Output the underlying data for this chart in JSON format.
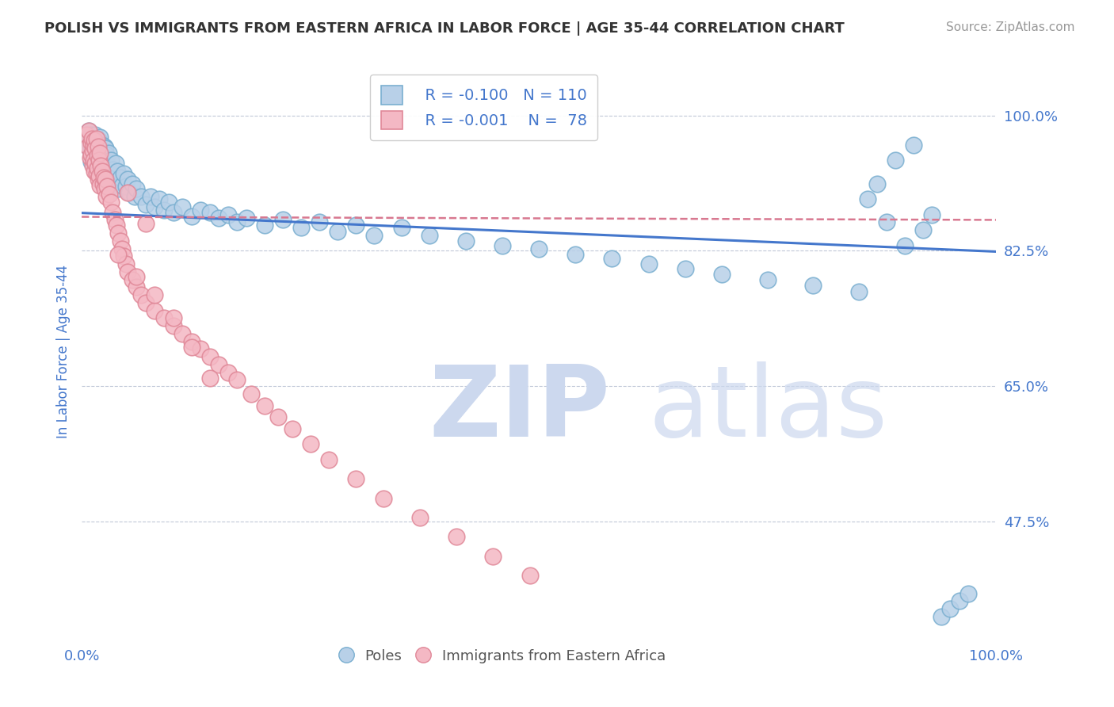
{
  "title": "POLISH VS IMMIGRANTS FROM EASTERN AFRICA IN LABOR FORCE | AGE 35-44 CORRELATION CHART",
  "source": "Source: ZipAtlas.com",
  "ylabel": "In Labor Force | Age 35-44",
  "xlim": [
    0.0,
    1.0
  ],
  "ylim": [
    0.32,
    1.07
  ],
  "yticks": [
    0.475,
    0.65,
    0.825,
    1.0
  ],
  "ytick_labels": [
    "47.5%",
    "65.0%",
    "82.5%",
    "100.0%"
  ],
  "blue_color": "#b8d0e8",
  "blue_edge": "#7aafd0",
  "pink_color": "#f4b8c4",
  "pink_edge": "#e08898",
  "trend_blue": "#4477cc",
  "trend_pink": "#d87890",
  "legend_r_blue": "-0.100",
  "legend_n_blue": "110",
  "legend_r_pink": "-0.001",
  "legend_n_pink": "78",
  "watermark": "ZIPatlas",
  "watermark_color": "#ccd8ee",
  "blue_trend_y_start": 0.874,
  "blue_trend_y_end": 0.824,
  "pink_trend_y_start": 0.869,
  "pink_trend_y_end": 0.865,
  "blue_scatter_x": [
    0.005,
    0.007,
    0.008,
    0.01,
    0.01,
    0.01,
    0.01,
    0.012,
    0.012,
    0.013,
    0.013,
    0.014,
    0.015,
    0.015,
    0.016,
    0.016,
    0.017,
    0.017,
    0.018,
    0.018,
    0.019,
    0.019,
    0.02,
    0.02,
    0.021,
    0.021,
    0.022,
    0.022,
    0.023,
    0.023,
    0.024,
    0.024,
    0.025,
    0.025,
    0.026,
    0.026,
    0.027,
    0.027,
    0.028,
    0.028,
    0.029,
    0.03,
    0.03,
    0.031,
    0.032,
    0.033,
    0.034,
    0.035,
    0.036,
    0.037,
    0.038,
    0.039,
    0.04,
    0.042,
    0.044,
    0.046,
    0.048,
    0.05,
    0.052,
    0.055,
    0.058,
    0.06,
    0.065,
    0.07,
    0.075,
    0.08,
    0.085,
    0.09,
    0.095,
    0.1,
    0.11,
    0.12,
    0.13,
    0.14,
    0.15,
    0.16,
    0.17,
    0.18,
    0.2,
    0.22,
    0.24,
    0.26,
    0.28,
    0.3,
    0.32,
    0.35,
    0.38,
    0.42,
    0.46,
    0.5,
    0.54,
    0.58,
    0.62,
    0.66,
    0.7,
    0.75,
    0.8,
    0.85,
    0.86,
    0.87,
    0.88,
    0.89,
    0.9,
    0.91,
    0.92,
    0.93,
    0.94,
    0.95,
    0.96,
    0.97
  ],
  "blue_scatter_y": [
    0.97,
    0.96,
    0.98,
    0.95,
    0.94,
    0.96,
    0.975,
    0.965,
    0.945,
    0.955,
    0.97,
    0.94,
    0.96,
    0.975,
    0.95,
    0.935,
    0.965,
    0.945,
    0.958,
    0.942,
    0.968,
    0.932,
    0.952,
    0.972,
    0.948,
    0.935,
    0.962,
    0.94,
    0.955,
    0.928,
    0.945,
    0.93,
    0.96,
    0.925,
    0.942,
    0.958,
    0.935,
    0.95,
    0.922,
    0.938,
    0.952,
    0.918,
    0.932,
    0.928,
    0.942,
    0.915,
    0.93,
    0.91,
    0.925,
    0.938,
    0.912,
    0.928,
    0.905,
    0.92,
    0.91,
    0.925,
    0.908,
    0.918,
    0.9,
    0.912,
    0.895,
    0.905,
    0.895,
    0.885,
    0.895,
    0.882,
    0.892,
    0.878,
    0.888,
    0.875,
    0.882,
    0.87,
    0.878,
    0.875,
    0.868,
    0.872,
    0.862,
    0.868,
    0.858,
    0.865,
    0.855,
    0.862,
    0.85,
    0.858,
    0.845,
    0.855,
    0.845,
    0.838,
    0.832,
    0.828,
    0.82,
    0.815,
    0.808,
    0.802,
    0.795,
    0.788,
    0.78,
    0.772,
    0.892,
    0.912,
    0.862,
    0.942,
    0.832,
    0.962,
    0.852,
    0.872,
    0.352,
    0.362,
    0.372,
    0.382
  ],
  "pink_scatter_x": [
    0.005,
    0.007,
    0.008,
    0.009,
    0.01,
    0.01,
    0.011,
    0.012,
    0.012,
    0.013,
    0.013,
    0.014,
    0.014,
    0.015,
    0.015,
    0.016,
    0.016,
    0.017,
    0.017,
    0.018,
    0.018,
    0.019,
    0.019,
    0.02,
    0.02,
    0.021,
    0.022,
    0.023,
    0.024,
    0.025,
    0.026,
    0.027,
    0.028,
    0.03,
    0.032,
    0.034,
    0.036,
    0.038,
    0.04,
    0.042,
    0.044,
    0.046,
    0.048,
    0.05,
    0.055,
    0.06,
    0.065,
    0.07,
    0.08,
    0.09,
    0.1,
    0.11,
    0.12,
    0.13,
    0.14,
    0.15,
    0.16,
    0.17,
    0.185,
    0.2,
    0.215,
    0.23,
    0.25,
    0.27,
    0.3,
    0.33,
    0.37,
    0.41,
    0.45,
    0.49,
    0.04,
    0.06,
    0.08,
    0.1,
    0.12,
    0.14,
    0.05,
    0.07
  ],
  "pink_scatter_y": [
    0.975,
    0.96,
    0.98,
    0.945,
    0.965,
    0.95,
    0.97,
    0.955,
    0.935,
    0.962,
    0.942,
    0.968,
    0.928,
    0.958,
    0.938,
    0.97,
    0.925,
    0.948,
    0.932,
    0.96,
    0.918,
    0.942,
    0.922,
    0.952,
    0.91,
    0.935,
    0.928,
    0.912,
    0.92,
    0.905,
    0.918,
    0.895,
    0.908,
    0.898,
    0.888,
    0.875,
    0.865,
    0.858,
    0.848,
    0.838,
    0.828,
    0.818,
    0.808,
    0.798,
    0.788,
    0.778,
    0.768,
    0.758,
    0.748,
    0.738,
    0.728,
    0.718,
    0.708,
    0.698,
    0.688,
    0.678,
    0.668,
    0.658,
    0.64,
    0.625,
    0.61,
    0.595,
    0.575,
    0.555,
    0.53,
    0.505,
    0.48,
    0.455,
    0.43,
    0.405,
    0.82,
    0.792,
    0.768,
    0.738,
    0.7,
    0.66,
    0.9,
    0.86
  ]
}
